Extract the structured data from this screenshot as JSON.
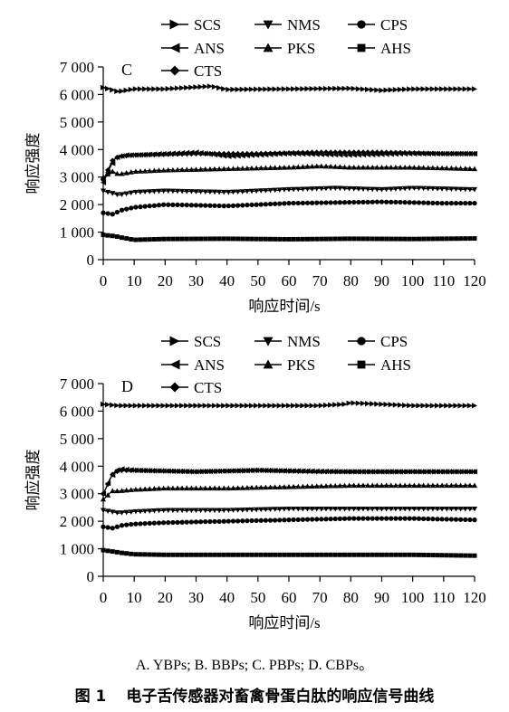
{
  "caption": {
    "sub": "A. YBPs; B. BBPs; C. PBPs; D. CBPs。",
    "fig_num": "图 1",
    "fig_title": "电子舌传感器对畜禽骨蛋白肽的响应信号曲线"
  },
  "chart_data": [
    {
      "type": "line",
      "panel_label": "C",
      "xlabel": "响应时间/s",
      "ylabel": "响应强度",
      "xlim": [
        0,
        120
      ],
      "ylim": [
        0,
        7000
      ],
      "xticks": [
        "0",
        "10",
        "20",
        "30",
        "40",
        "50",
        "60",
        "70",
        "80",
        "90",
        "100",
        "110",
        "120"
      ],
      "yticks": [
        "0",
        "1 000",
        "2 000",
        "3 000",
        "4 000",
        "5 000",
        "6 000",
        "7 000"
      ],
      "legend": [
        "SCS",
        "NMS",
        "CPS",
        "ANS",
        "PKS",
        "AHS",
        "CTS"
      ],
      "legend_position": "top",
      "series": [
        {
          "name": "SCS",
          "marker": "tri-right",
          "x": [
            0,
            2,
            5,
            10,
            20,
            35,
            40,
            60,
            80,
            90,
            100,
            120
          ],
          "values": [
            6250,
            6200,
            6100,
            6200,
            6200,
            6300,
            6180,
            6200,
            6220,
            6150,
            6200,
            6200
          ]
        },
        {
          "name": "NMS",
          "marker": "tri-down",
          "x": [
            0,
            5,
            10,
            20,
            40,
            60,
            75,
            90,
            100,
            120
          ],
          "values": [
            2500,
            2350,
            2450,
            2500,
            2450,
            2550,
            2600,
            2550,
            2600,
            2550
          ]
        },
        {
          "name": "CPS",
          "marker": "circle",
          "x": [
            0,
            3,
            6,
            10,
            20,
            40,
            60,
            90,
            110,
            120
          ],
          "values": [
            1700,
            1650,
            1800,
            1900,
            2000,
            1950,
            2050,
            2100,
            2050,
            2050
          ]
        },
        {
          "name": "ANS",
          "marker": "tri-left",
          "x": [
            0,
            2,
            4,
            7,
            10,
            30,
            40,
            60,
            80,
            100,
            120
          ],
          "values": [
            2800,
            3300,
            3700,
            3800,
            3800,
            3900,
            3750,
            3850,
            3800,
            3850,
            3850
          ]
        },
        {
          "name": "PKS",
          "marker": "tri-up",
          "x": [
            0,
            3,
            5,
            10,
            20,
            40,
            60,
            70,
            80,
            100,
            120
          ],
          "values": [
            3000,
            3200,
            3100,
            3200,
            3250,
            3300,
            3350,
            3400,
            3350,
            3350,
            3300
          ]
        },
        {
          "name": "AHS",
          "marker": "square",
          "x": [
            0,
            4,
            6,
            10,
            20,
            40,
            60,
            80,
            100,
            120
          ],
          "values": [
            900,
            850,
            800,
            720,
            750,
            760,
            740,
            760,
            750,
            770
          ]
        },
        {
          "name": "CTS",
          "marker": "diamond",
          "x": [
            0,
            3,
            5,
            10,
            30,
            50,
            70,
            90,
            110,
            120
          ],
          "values": [
            2900,
            3600,
            3750,
            3800,
            3850,
            3850,
            3900,
            3900,
            3850,
            3850
          ]
        }
      ]
    },
    {
      "type": "line",
      "panel_label": "D",
      "xlabel": "响应时间/s",
      "ylabel": "响应强度",
      "xlim": [
        0,
        120
      ],
      "ylim": [
        0,
        7000
      ],
      "xticks": [
        "0",
        "10",
        "20",
        "30",
        "40",
        "50",
        "60",
        "70",
        "80",
        "90",
        "100",
        "110",
        "120"
      ],
      "yticks": [
        "0",
        "1 000",
        "2 000",
        "3 000",
        "4 000",
        "5 000",
        "6 000",
        "7 000"
      ],
      "legend": [
        "SCS",
        "NMS",
        "CPS",
        "ANS",
        "PKS",
        "AHS",
        "CTS"
      ],
      "legend_position": "top",
      "series": [
        {
          "name": "SCS",
          "marker": "tri-right",
          "x": [
            0,
            5,
            20,
            40,
            60,
            70,
            78,
            80,
            90,
            100,
            120
          ],
          "values": [
            6250,
            6200,
            6200,
            6200,
            6200,
            6200,
            6250,
            6300,
            6250,
            6200,
            6200
          ]
        },
        {
          "name": "NMS",
          "marker": "tri-down",
          "x": [
            0,
            5,
            10,
            20,
            40,
            60,
            80,
            100,
            120
          ],
          "values": [
            2400,
            2300,
            2350,
            2400,
            2400,
            2450,
            2450,
            2450,
            2450
          ]
        },
        {
          "name": "CPS",
          "marker": "circle",
          "x": [
            0,
            3,
            6,
            10,
            20,
            40,
            60,
            80,
            100,
            120
          ],
          "values": [
            1800,
            1750,
            1850,
            1900,
            1950,
            2000,
            2050,
            2100,
            2100,
            2050
          ]
        },
        {
          "name": "ANS",
          "marker": "tri-left",
          "x": [
            0,
            2,
            4,
            6,
            10,
            30,
            50,
            80,
            100,
            120
          ],
          "values": [
            3000,
            3500,
            3850,
            3900,
            3850,
            3800,
            3850,
            3800,
            3800,
            3800
          ]
        },
        {
          "name": "PKS",
          "marker": "tri-up",
          "x": [
            0,
            3,
            5,
            10,
            20,
            40,
            60,
            80,
            100,
            120
          ],
          "values": [
            2800,
            3100,
            3100,
            3150,
            3200,
            3200,
            3250,
            3300,
            3300,
            3300
          ]
        },
        {
          "name": "AHS",
          "marker": "square",
          "x": [
            0,
            3,
            6,
            10,
            20,
            40,
            60,
            80,
            100,
            120
          ],
          "values": [
            950,
            900,
            850,
            800,
            780,
            780,
            780,
            780,
            780,
            750
          ]
        },
        {
          "name": "CTS",
          "marker": "diamond",
          "x": [
            0,
            3,
            5,
            10,
            30,
            50,
            70,
            90,
            110,
            120
          ],
          "values": [
            3000,
            3700,
            3850,
            3850,
            3800,
            3850,
            3800,
            3800,
            3800,
            3800
          ]
        }
      ]
    }
  ]
}
